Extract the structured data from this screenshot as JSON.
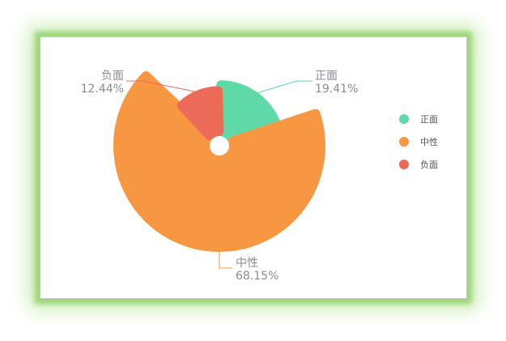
{
  "chart_data": {
    "type": "pie",
    "style": "nightingale-rose",
    "legend_placement": "right",
    "slices": [
      {
        "name": "正面",
        "percent_label": "19.41%",
        "value": 19.41,
        "color": "#5fd9a8"
      },
      {
        "name": "中性",
        "percent_label": "68.15%",
        "value": 68.15,
        "color": "#f79742"
      },
      {
        "name": "负面",
        "percent_label": "12.44%",
        "value": 12.44,
        "color": "#ec6a58"
      }
    ]
  }
}
